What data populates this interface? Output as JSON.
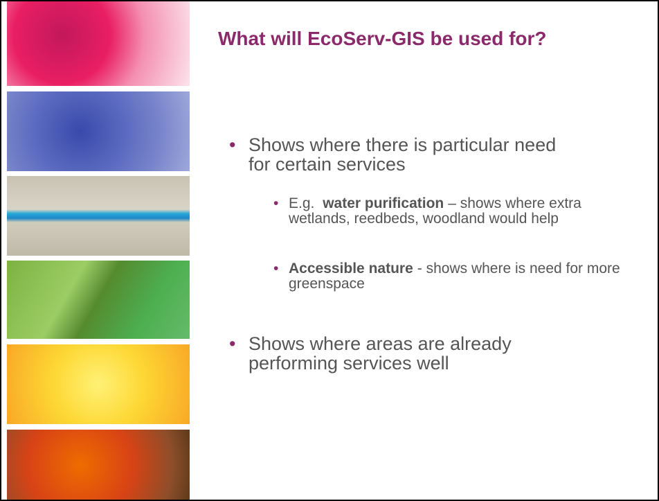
{
  "slide": {
    "title": "What will EcoServ-GIS be used for?",
    "bullets": [
      {
        "text": "Shows where there is particular need for certain services",
        "sub": [
          {
            "prefix": "E.g.",
            "bold": "water purification",
            "text": "– shows where extra wetlands, reedbeds, woodland would help"
          },
          {
            "bold": "Accessible nature",
            "text": "- shows where is need for more greenspace"
          }
        ]
      },
      {
        "text": "Shows where areas are already performing services well"
      }
    ]
  }
}
